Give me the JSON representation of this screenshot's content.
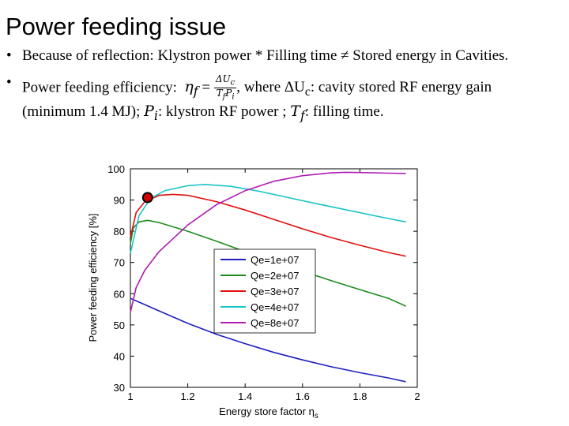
{
  "slide": {
    "title": "Power feeding issue",
    "bullet1": "Because of reflection: Klystron power * Filling time ≠ Stored energy in Cavities.",
    "bullet2_lead": "Power feeding efficiency:",
    "bullet2_eq_lhs": "η",
    "bullet2_eq_lhs_sub": "f",
    "bullet2_eq_sign": "=",
    "bullet2_frac_num": "ΔU",
    "bullet2_frac_num_sub": "c",
    "bullet2_frac_den": "T",
    "bullet2_frac_den_sub1": "f",
    "bullet2_frac_den_mid": "P",
    "bullet2_frac_den_sub2": "i",
    "bullet2_tail1": ", where ΔU",
    "bullet2_tail1_sub": "c",
    "bullet2_tail2": ": cavity stored RF energy gain",
    "bullet2_line2a": "(minimum 1.4 MJ); ",
    "bullet2_pi": "P",
    "bullet2_pi_sub": "i",
    "bullet2_line2b": ": klystron RF power ; ",
    "bullet2_tf": "T",
    "bullet2_tf_sub": "f",
    "bullet2_line2c": ": filling time."
  },
  "chart_data": {
    "type": "line",
    "title": "",
    "xlabel": "Energy store factor η",
    "xlabel_sub": "s",
    "ylabel": "Power feeding efficiency [%]",
    "xlim": [
      1,
      2
    ],
    "ylim": [
      30,
      100
    ],
    "xticks": [
      "1",
      "1.2",
      "1.4",
      "1.6",
      "1.8",
      "2"
    ],
    "yticks": [
      "30",
      "40",
      "50",
      "60",
      "70",
      "80",
      "90",
      "100"
    ],
    "xtick_values": [
      1,
      1.2,
      1.4,
      1.6,
      1.8,
      2
    ],
    "ytick_values": [
      30,
      40,
      50,
      60,
      70,
      80,
      90,
      100
    ],
    "grid": false,
    "legend_position": "center-right",
    "marker": {
      "x": 1.06,
      "y": 90.8,
      "color": "#d00000"
    },
    "series": [
      {
        "name": "Qe=1e+07",
        "color": "#1f1fbf",
        "x": [
          1.0,
          1.05,
          1.1,
          1.2,
          1.3,
          1.4,
          1.5,
          1.6,
          1.7,
          1.8,
          1.9,
          1.96
        ],
        "y": [
          58.5,
          56.5,
          54.5,
          50.5,
          47.0,
          44.0,
          41.2,
          38.8,
          36.6,
          34.7,
          33.0,
          31.8
        ]
      },
      {
        "name": "Qe=2e+07",
        "color": "#1e8a1e",
        "x": [
          1.0,
          1.01,
          1.03,
          1.06,
          1.1,
          1.2,
          1.3,
          1.4,
          1.5,
          1.6,
          1.7,
          1.8,
          1.9,
          1.96
        ],
        "y": [
          76.0,
          81.0,
          83.0,
          83.5,
          82.8,
          80.0,
          76.8,
          73.5,
          70.3,
          67.2,
          64.2,
          61.3,
          58.5,
          56.0
        ]
      },
      {
        "name": "Qe=3e+07",
        "color": "#e01010",
        "x": [
          1.0,
          1.02,
          1.05,
          1.1,
          1.15,
          1.2,
          1.3,
          1.4,
          1.5,
          1.6,
          1.7,
          1.8,
          1.9,
          1.96
        ],
        "y": [
          78.0,
          86.0,
          89.5,
          91.5,
          91.8,
          91.5,
          89.5,
          86.8,
          83.8,
          80.8,
          78.0,
          75.5,
          73.2,
          72.0
        ]
      },
      {
        "name": "Qe=4e+07",
        "color": "#19c4c4",
        "x": [
          1.0,
          1.03,
          1.07,
          1.12,
          1.2,
          1.26,
          1.35,
          1.45,
          1.55,
          1.65,
          1.75,
          1.85,
          1.96
        ],
        "y": [
          73.0,
          85.0,
          90.5,
          93.0,
          94.6,
          95.0,
          94.4,
          92.8,
          90.8,
          88.8,
          86.9,
          85.0,
          83.0
        ]
      },
      {
        "name": "Qe=8e+07",
        "color": "#b01bb0",
        "x": [
          1.0,
          1.02,
          1.05,
          1.1,
          1.2,
          1.3,
          1.4,
          1.5,
          1.6,
          1.7,
          1.75,
          1.8,
          1.9,
          1.96
        ],
        "y": [
          54.0,
          62.0,
          67.5,
          73.5,
          82.0,
          88.5,
          93.0,
          96.0,
          97.8,
          98.7,
          98.9,
          98.8,
          98.6,
          98.5
        ]
      }
    ]
  }
}
